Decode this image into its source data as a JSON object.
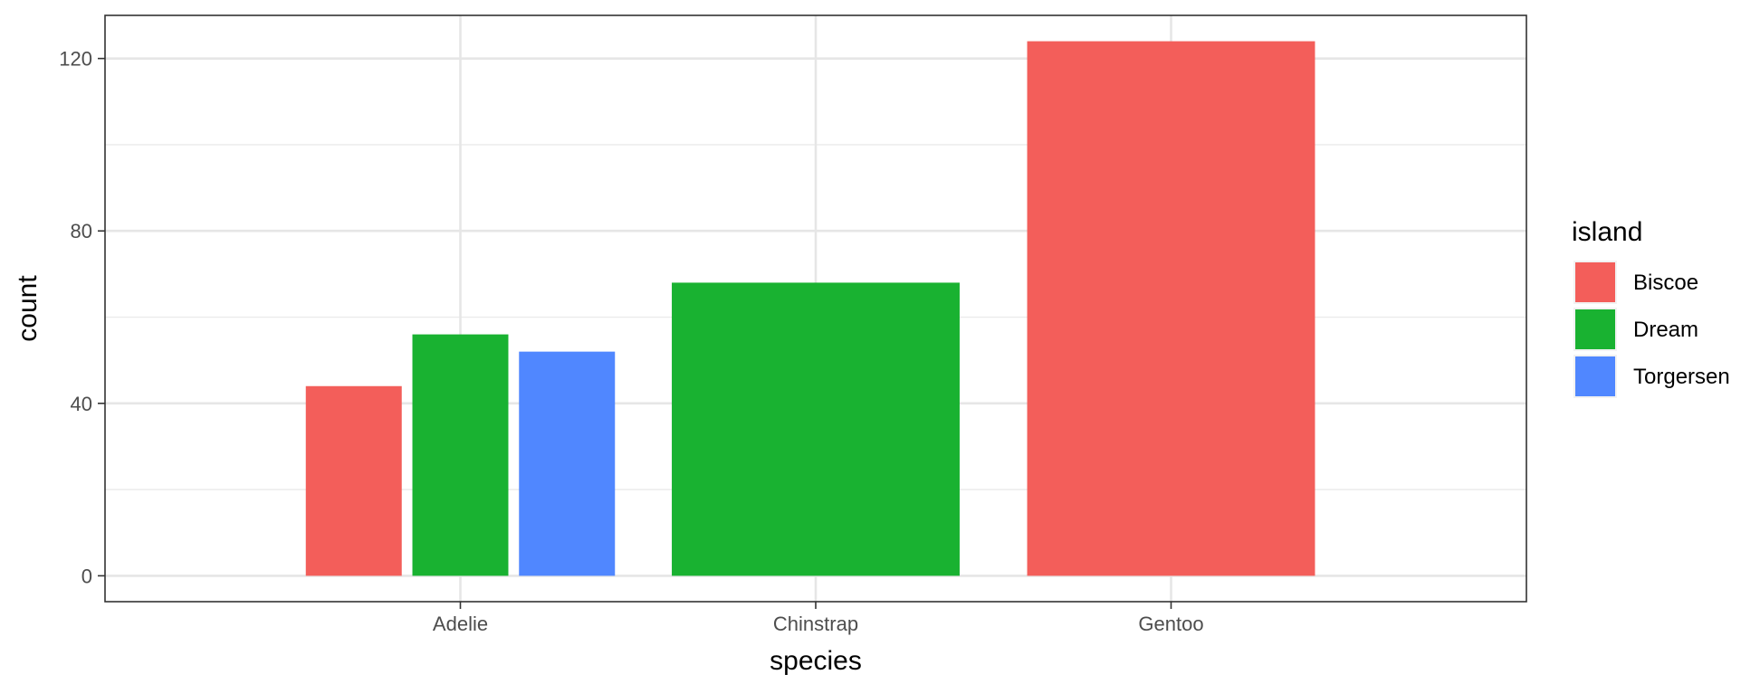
{
  "chart_data": {
    "type": "bar",
    "xlabel": "species",
    "ylabel": "count",
    "categories": [
      "Adelie",
      "Chinstrap",
      "Gentoo"
    ],
    "series": [
      {
        "name": "Biscoe",
        "color": "#F35E5A",
        "values": [
          44,
          null,
          124
        ]
      },
      {
        "name": "Dream",
        "color": "#19B231",
        "values": [
          56,
          68,
          null
        ]
      },
      {
        "name": "Torgersen",
        "color": "#5087FF",
        "values": [
          52,
          null,
          null
        ]
      }
    ],
    "ylim": [
      -6,
      130
    ],
    "yticks": [
      0,
      40,
      80,
      120
    ],
    "yticks_minor": [
      20,
      60,
      100
    ],
    "grid": true,
    "legend": {
      "title": "island",
      "position": "right"
    }
  }
}
